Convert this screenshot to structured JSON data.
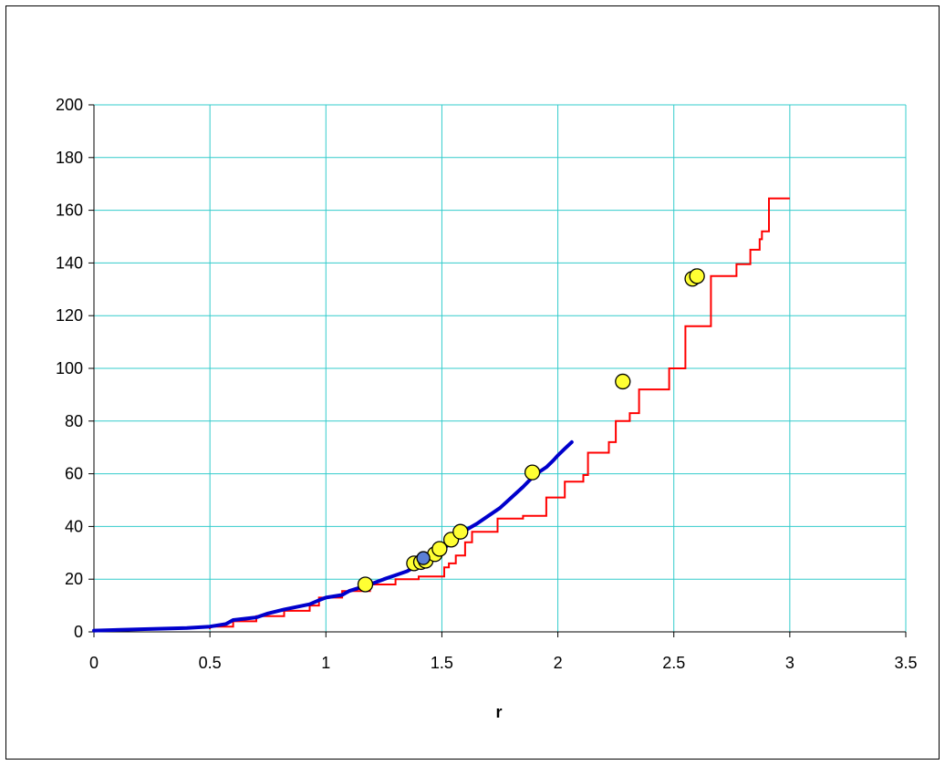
{
  "chart_data": {
    "type": "line",
    "title": "",
    "xlabel": "r",
    "ylabel": "",
    "xlim": [
      0,
      3.5
    ],
    "ylim": [
      0,
      200
    ],
    "xticks": [
      "0",
      "0.5",
      "1",
      "1.5",
      "2",
      "2.5",
      "3",
      "3.5"
    ],
    "yticks": [
      "0",
      "20",
      "40",
      "60",
      "80",
      "100",
      "120",
      "140",
      "160",
      "180",
      "200"
    ],
    "grid": true,
    "legend": "none",
    "colors": {
      "grid": "#33CCCC",
      "step_series": "#FF0000",
      "smooth_series": "#0000CC",
      "marker_fill": "#FFFF33",
      "marker_highlight": "#5B7FD6",
      "marker_edge": "#000000"
    },
    "series": [
      {
        "type": "step",
        "color": "#FF0000",
        "points": [
          [
            0.5,
            1
          ],
          [
            0.5,
            2
          ],
          [
            0.6,
            2
          ],
          [
            0.6,
            4
          ],
          [
            0.7,
            4
          ],
          [
            0.7,
            6
          ],
          [
            0.82,
            6
          ],
          [
            0.82,
            8
          ],
          [
            0.93,
            8
          ],
          [
            0.93,
            10
          ],
          [
            0.97,
            10
          ],
          [
            0.97,
            13
          ],
          [
            1.07,
            13
          ],
          [
            1.07,
            15.5
          ],
          [
            1.19,
            15.5
          ],
          [
            1.19,
            18
          ],
          [
            1.3,
            18
          ],
          [
            1.3,
            20
          ],
          [
            1.4,
            20
          ],
          [
            1.4,
            21
          ],
          [
            1.51,
            21
          ],
          [
            1.51,
            24.5
          ],
          [
            1.53,
            24.5
          ],
          [
            1.53,
            26
          ],
          [
            1.56,
            26
          ],
          [
            1.56,
            29
          ],
          [
            1.6,
            29
          ],
          [
            1.6,
            34
          ],
          [
            1.63,
            34
          ],
          [
            1.63,
            38
          ],
          [
            1.74,
            38
          ],
          [
            1.74,
            43
          ],
          [
            1.85,
            43
          ],
          [
            1.85,
            44
          ],
          [
            1.95,
            44
          ],
          [
            1.95,
            51
          ],
          [
            2.03,
            51
          ],
          [
            2.03,
            57
          ],
          [
            2.11,
            57
          ],
          [
            2.11,
            59.5
          ],
          [
            2.13,
            59.5
          ],
          [
            2.13,
            68
          ],
          [
            2.22,
            68
          ],
          [
            2.22,
            72
          ],
          [
            2.25,
            72
          ],
          [
            2.25,
            80
          ],
          [
            2.31,
            80
          ],
          [
            2.31,
            83
          ],
          [
            2.35,
            83
          ],
          [
            2.35,
            92
          ],
          [
            2.48,
            92
          ],
          [
            2.48,
            100
          ],
          [
            2.55,
            100
          ],
          [
            2.55,
            116
          ],
          [
            2.66,
            116
          ],
          [
            2.66,
            135
          ],
          [
            2.77,
            135
          ],
          [
            2.77,
            139.5
          ],
          [
            2.83,
            139.5
          ],
          [
            2.83,
            145
          ],
          [
            2.87,
            145
          ],
          [
            2.87,
            149
          ],
          [
            2.88,
            149
          ],
          [
            2.88,
            152
          ],
          [
            2.91,
            152
          ],
          [
            2.91,
            164.5
          ],
          [
            3.0,
            164.5
          ]
        ]
      },
      {
        "type": "smooth",
        "color": "#0000CC",
        "points": [
          [
            0.0,
            0.5
          ],
          [
            0.2,
            1
          ],
          [
            0.4,
            1.5
          ],
          [
            0.5,
            2
          ],
          [
            0.57,
            3
          ],
          [
            0.6,
            4.5
          ],
          [
            0.7,
            5.5
          ],
          [
            0.75,
            7
          ],
          [
            0.82,
            8.5
          ],
          [
            0.93,
            10.5
          ],
          [
            0.97,
            12
          ],
          [
            1.0,
            13
          ],
          [
            1.07,
            14
          ],
          [
            1.1,
            15.5
          ],
          [
            1.19,
            18
          ],
          [
            1.25,
            20
          ],
          [
            1.3,
            21.5
          ],
          [
            1.35,
            23
          ],
          [
            1.4,
            25.5
          ],
          [
            1.44,
            27.5
          ],
          [
            1.48,
            30
          ],
          [
            1.52,
            32.5
          ],
          [
            1.56,
            35
          ],
          [
            1.6,
            38.5
          ],
          [
            1.65,
            41
          ],
          [
            1.7,
            44
          ],
          [
            1.75,
            47
          ],
          [
            1.8,
            51
          ],
          [
            1.85,
            55
          ],
          [
            1.9,
            59.5
          ],
          [
            1.95,
            62.5
          ],
          [
            1.98,
            65
          ],
          [
            2.0,
            67
          ],
          [
            2.03,
            69.5
          ],
          [
            2.06,
            72
          ]
        ]
      },
      {
        "type": "scatter",
        "points": [
          [
            1.17,
            18
          ],
          [
            1.38,
            26
          ],
          [
            1.41,
            26.5
          ],
          [
            1.43,
            27
          ],
          [
            1.47,
            29.5
          ],
          [
            1.49,
            31.5
          ],
          [
            1.54,
            35
          ],
          [
            1.58,
            38
          ],
          [
            1.89,
            60.5
          ],
          [
            2.28,
            95
          ],
          [
            2.58,
            134
          ],
          [
            2.6,
            135
          ]
        ],
        "highlight_point": [
          1.42,
          28
        ]
      }
    ]
  }
}
